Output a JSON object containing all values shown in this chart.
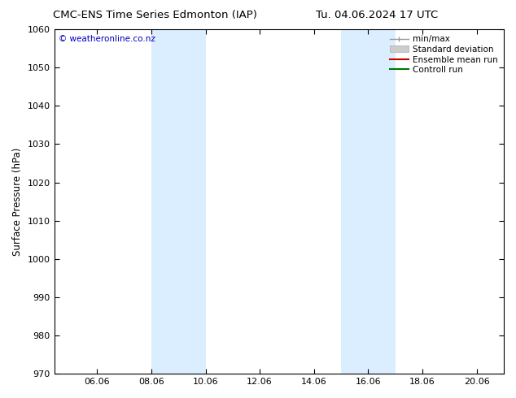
{
  "title_left": "CMC-ENS Time Series Edmonton (IAP)",
  "title_right": "Tu. 04.06.2024 17 UTC",
  "ylabel": "Surface Pressure (hPa)",
  "ylim": [
    970,
    1060
  ],
  "yticks": [
    970,
    980,
    990,
    1000,
    1010,
    1020,
    1030,
    1040,
    1050,
    1060
  ],
  "xtick_labels": [
    "06.06",
    "08.06",
    "10.06",
    "12.06",
    "14.06",
    "16.06",
    "18.06",
    "20.06"
  ],
  "shaded_color": "#daeeff",
  "watermark": "© weatheronline.co.nz",
  "watermark_color": "#0000bb",
  "bg_color": "#ffffff",
  "plot_bg_color": "#ffffff",
  "border_color": "#000000",
  "title_fontsize": 9.5,
  "label_fontsize": 8.5,
  "tick_fontsize": 8,
  "legend_fontsize": 7.5
}
